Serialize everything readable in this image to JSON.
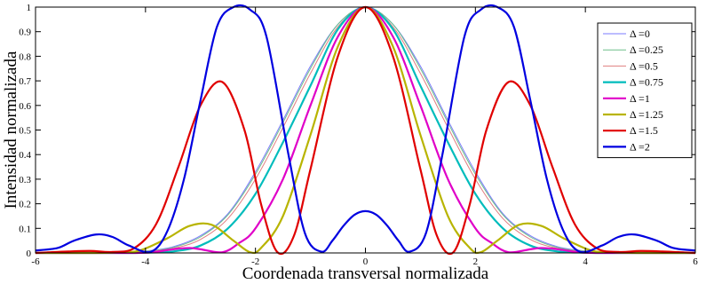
{
  "chart_data": {
    "type": "line",
    "xlabel": "Coordenada transversal normalizada",
    "ylabel": "Intensidad normalizada",
    "xlim": [
      -6,
      6
    ],
    "ylim": [
      0,
      1
    ],
    "xticks": [
      -6,
      -4,
      -2,
      0,
      2,
      4,
      6
    ],
    "yticks": [
      0,
      0.1,
      0.2,
      0.3,
      0.4,
      0.5,
      0.6,
      0.7,
      0.8,
      0.9,
      1
    ],
    "grid": false,
    "legend_position": "top-right",
    "series": [
      {
        "name": "Δ =0",
        "color": "#7b7bff",
        "x": [
          0,
          0.5,
          1,
          1.5,
          2,
          2.5,
          3,
          3.5,
          4,
          4.5,
          5,
          6
        ],
        "y": [
          1,
          0.93,
          0.76,
          0.54,
          0.33,
          0.16,
          0.07,
          0.025,
          0.008,
          0.002,
          0.001,
          0
        ]
      },
      {
        "name": "Δ =0.25",
        "color": "#6fbf8a",
        "x": [
          0,
          0.5,
          1,
          1.5,
          2,
          2.5,
          3,
          3.5,
          4,
          4.5,
          5,
          6
        ],
        "y": [
          1,
          0.93,
          0.75,
          0.53,
          0.32,
          0.155,
          0.065,
          0.022,
          0.007,
          0.002,
          0.001,
          0
        ]
      },
      {
        "name": "Δ =0.5",
        "color": "#e07f7f",
        "x": [
          0,
          0.5,
          1,
          1.5,
          2,
          2.5,
          3,
          3.5,
          4,
          4.5,
          5,
          6
        ],
        "y": [
          1,
          0.92,
          0.73,
          0.51,
          0.3,
          0.14,
          0.055,
          0.018,
          0.005,
          0.002,
          0.001,
          0
        ]
      },
      {
        "name": "Δ =0.75",
        "color": "#00bcbc",
        "x": [
          0,
          0.5,
          1,
          1.5,
          2,
          2.5,
          3,
          3.5,
          4,
          4.5,
          5,
          6
        ],
        "y": [
          1,
          0.91,
          0.68,
          0.45,
          0.24,
          0.1,
          0.03,
          0.006,
          0.001,
          0,
          0,
          0
        ]
      },
      {
        "name": "Δ =1",
        "color": "#e000c8",
        "x": [
          0,
          0.5,
          1,
          1.5,
          2,
          2.3,
          2.6,
          3,
          3.2,
          3.5,
          3.9,
          4.3,
          5,
          6
        ],
        "y": [
          1,
          0.88,
          0.6,
          0.3,
          0.1,
          0.04,
          0.003,
          0.015,
          0.02,
          0.015,
          0.002,
          0,
          0,
          0
        ]
      },
      {
        "name": "Δ =1.25",
        "color": "#b8b400",
        "x": [
          0,
          0.5,
          1,
          1.5,
          1.9,
          2.1,
          2.4,
          2.8,
          3.2,
          3.6,
          4.1,
          4.5,
          5,
          6
        ],
        "y": [
          1,
          0.84,
          0.48,
          0.15,
          0.02,
          0.003,
          0.05,
          0.115,
          0.11,
          0.06,
          0.01,
          0.002,
          0,
          0
        ]
      },
      {
        "name": "Δ =1.5",
        "color": "#e00000",
        "x": [
          0,
          0.5,
          1,
          1.3,
          1.6,
          1.9,
          2.2,
          2.6,
          3,
          3.4,
          3.8,
          4.2,
          4.6,
          5,
          5.4,
          5.8,
          6
        ],
        "y": [
          1,
          0.8,
          0.34,
          0.07,
          0.003,
          0.2,
          0.5,
          0.695,
          0.6,
          0.35,
          0.12,
          0.02,
          0.004,
          0.008,
          0.006,
          0.002,
          0
        ]
      },
      {
        "name": "Δ =2",
        "color": "#0000e0",
        "x": [
          0,
          0.2,
          0.4,
          0.6,
          0.8,
          1.1,
          1.4,
          1.8,
          2.1,
          2.4,
          2.7,
          3,
          3.3,
          3.6,
          3.9,
          4.3,
          4.6,
          4.9,
          5.3,
          5.6,
          6
        ],
        "y": [
          0.17,
          0.155,
          0.11,
          0.05,
          0.005,
          0.08,
          0.4,
          0.88,
          0.99,
          1,
          0.92,
          0.62,
          0.3,
          0.09,
          0.005,
          0.03,
          0.065,
          0.075,
          0.05,
          0.02,
          0.01
        ]
      }
    ]
  }
}
